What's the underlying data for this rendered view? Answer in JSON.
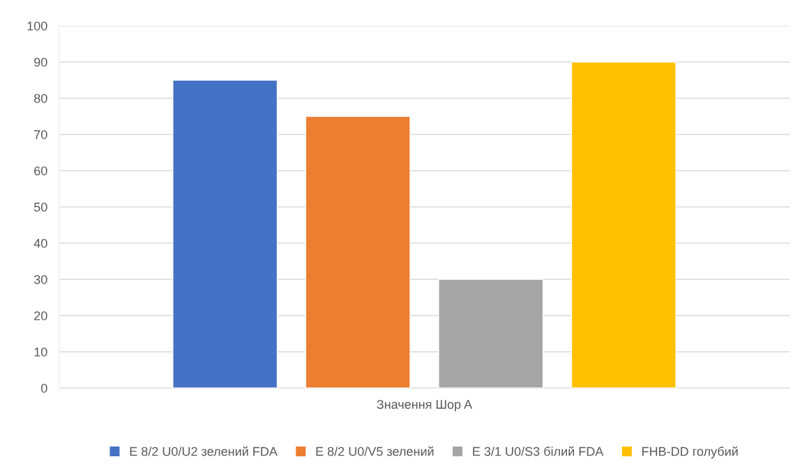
{
  "chart_data": {
    "type": "bar",
    "categories": [
      "Значення Шор A"
    ],
    "series": [
      {
        "name": "E 8/2 U0/U2 зелений FDA",
        "color": "#4472c4",
        "values": [
          85
        ]
      },
      {
        "name": "E 8/2 U0/V5 зелений",
        "color": "#ed7d31",
        "values": [
          75
        ]
      },
      {
        "name": "E 3/1 U0/S3 білий FDA",
        "color": "#a5a5a5",
        "values": [
          30
        ]
      },
      {
        "name": "FHB-DD голубий",
        "color": "#ffc000",
        "values": [
          90
        ]
      }
    ],
    "ylim": [
      0,
      100
    ],
    "yticks": [
      0,
      10,
      20,
      30,
      40,
      50,
      60,
      70,
      80,
      90,
      100
    ],
    "grid": "y",
    "legend": "bottom"
  }
}
